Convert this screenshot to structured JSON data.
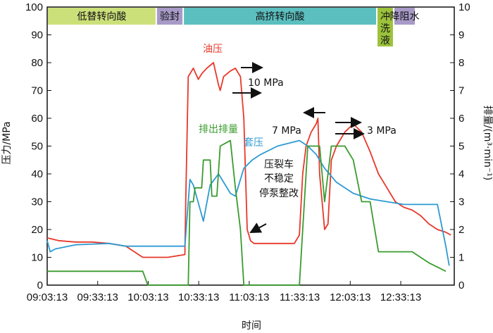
{
  "chart_data": {
    "type": "line",
    "xlabel": "时间",
    "ylabel": "压力/MPa",
    "y2label": "排量/(m³·min⁻¹)",
    "ylim": [
      0,
      100
    ],
    "y2lim": [
      0,
      10
    ],
    "x_ticks": [
      "09:03:13",
      "09:33:13",
      "10:03:13",
      "10:33:13",
      "11:03:13",
      "11:33:13",
      "12:03:13",
      "12:33:13"
    ],
    "y_ticks": [
      0,
      10,
      20,
      30,
      40,
      50,
      60,
      70,
      80,
      90,
      100
    ],
    "y2_ticks": [
      0,
      1,
      2,
      3,
      4,
      5,
      6,
      7,
      8,
      9,
      10
    ],
    "stages": [
      {
        "label": "低替转向酸",
        "from": "09:03:13",
        "to": "10:08:00",
        "color": "#cce07a"
      },
      {
        "label": "验封",
        "from": "10:08:00",
        "to": "10:24:00",
        "color": "#a89ac8"
      },
      {
        "label": "高挤转向酸",
        "from": "10:24:00",
        "to": "12:19:00",
        "color": "#5cbfbf"
      },
      {
        "label": "冲洗液",
        "from": "12:19:00",
        "to": "12:29:00",
        "color": "#9cc23c"
      },
      {
        "label": "降阻水",
        "from": "12:29:00",
        "to": "12:42:00",
        "color": "#a89ac8"
      }
    ],
    "series": [
      {
        "name": "油压",
        "axis": "left",
        "color": "#e8382a",
        "points": [
          [
            "09:03:13",
            17
          ],
          [
            "09:10:00",
            16
          ],
          [
            "09:20:00",
            15.5
          ],
          [
            "09:30:00",
            15.5
          ],
          [
            "09:40:00",
            15
          ],
          [
            "09:50:00",
            14
          ],
          [
            "10:00:00",
            10
          ],
          [
            "10:15:00",
            10
          ],
          [
            "10:25:00",
            11
          ],
          [
            "10:25:30",
            30
          ],
          [
            "10:27:00",
            75
          ],
          [
            "10:30:00",
            78
          ],
          [
            "10:33:00",
            74
          ],
          [
            "10:35:00",
            76
          ],
          [
            "10:38:00",
            78
          ],
          [
            "10:42:00",
            80
          ],
          [
            "10:45:00",
            72
          ],
          [
            "10:46:00",
            70
          ],
          [
            "10:48:00",
            75
          ],
          [
            "10:52:00",
            77
          ],
          [
            "10:55:00",
            78
          ],
          [
            "10:58:00",
            75
          ],
          [
            "11:00:00",
            60
          ],
          [
            "11:01:00",
            40
          ],
          [
            "11:02:00",
            20
          ],
          [
            "11:04:00",
            16
          ],
          [
            "11:06:00",
            15
          ],
          [
            "11:30:00",
            15
          ],
          [
            "11:33:00",
            18
          ],
          [
            "11:35:00",
            40
          ],
          [
            "11:37:00",
            50
          ],
          [
            "11:40:00",
            55
          ],
          [
            "11:43:00",
            58
          ],
          [
            "11:44:00",
            60
          ],
          [
            "11:45:00",
            40
          ],
          [
            "11:48:00",
            20
          ],
          [
            "11:50:00",
            22
          ],
          [
            "11:52:00",
            45
          ],
          [
            "11:55:00",
            50
          ],
          [
            "12:00:00",
            55
          ],
          [
            "12:05:00",
            58
          ],
          [
            "12:10:00",
            55
          ],
          [
            "12:15:00",
            48
          ],
          [
            "12:20:00",
            40
          ],
          [
            "12:25:00",
            35
          ],
          [
            "12:30:00",
            30
          ],
          [
            "12:35:00",
            28
          ],
          [
            "12:40:00",
            27
          ],
          [
            "12:45:00",
            25
          ],
          [
            "12:50:00",
            22
          ],
          [
            "12:55:00",
            20
          ],
          [
            "13:00:00",
            19
          ],
          [
            "13:03:00",
            18
          ]
        ]
      },
      {
        "name": "套压",
        "axis": "left",
        "color": "#2d9ad2",
        "points": [
          [
            "09:03:13",
            16
          ],
          [
            "09:05:00",
            12
          ],
          [
            "09:08:00",
            13
          ],
          [
            "09:20:00",
            14.5
          ],
          [
            "09:40:00",
            15
          ],
          [
            "09:50:00",
            14
          ],
          [
            "10:10:00",
            14
          ],
          [
            "10:25:00",
            14
          ],
          [
            "10:28:00",
            38
          ],
          [
            "10:30:00",
            36
          ],
          [
            "10:36:00",
            23
          ],
          [
            "10:40:00",
            36
          ],
          [
            "10:45:00",
            40
          ],
          [
            "10:52:00",
            33
          ],
          [
            "10:55:00",
            32
          ],
          [
            "11:00:00",
            42
          ],
          [
            "11:05:00",
            45
          ],
          [
            "11:10:00",
            47
          ],
          [
            "11:20:00",
            50
          ],
          [
            "11:33:00",
            52
          ],
          [
            "11:38:00",
            50
          ],
          [
            "11:43:00",
            47
          ],
          [
            "11:48:00",
            42
          ],
          [
            "11:55:00",
            37
          ],
          [
            "12:05:00",
            33
          ],
          [
            "12:15:00",
            31
          ],
          [
            "12:25:00",
            30
          ],
          [
            "12:35:00",
            29
          ],
          [
            "12:45:00",
            29
          ],
          [
            "12:55:00",
            29
          ],
          [
            "13:00:00",
            14
          ],
          [
            "13:02:00",
            7
          ]
        ]
      },
      {
        "name": "排出排量",
        "axis": "right",
        "color": "#3a9b2e",
        "points": [
          [
            "09:03:13",
            0.5
          ],
          [
            "09:33:00",
            0.5
          ],
          [
            "09:33:00",
            0.5
          ],
          [
            "10:00:00",
            0.5
          ],
          [
            "10:03:00",
            0
          ],
          [
            "10:27:00",
            0
          ],
          [
            "10:28:00",
            3
          ],
          [
            "10:30:00",
            3
          ],
          [
            "10:31:00",
            3.5
          ],
          [
            "10:35:00",
            3.5
          ],
          [
            "10:36:00",
            4.5
          ],
          [
            "10:40:00",
            4.5
          ],
          [
            "10:41:00",
            3.2
          ],
          [
            "10:44:00",
            3.2
          ],
          [
            "10:46:00",
            5
          ],
          [
            "10:52:00",
            5.2
          ],
          [
            "10:55:00",
            3.5
          ],
          [
            "10:58:00",
            2
          ],
          [
            "11:00:00",
            0
          ],
          [
            "11:33:00",
            0
          ],
          [
            "11:36:00",
            3
          ],
          [
            "11:38:00",
            5
          ],
          [
            "11:45:00",
            5
          ],
          [
            "11:48:00",
            3
          ],
          [
            "11:52:00",
            5
          ],
          [
            "12:00:00",
            5
          ],
          [
            "12:05:00",
            4.5
          ],
          [
            "12:10:00",
            3
          ],
          [
            "12:15:00",
            3
          ],
          [
            "12:20:00",
            1.2
          ],
          [
            "12:30:00",
            1.2
          ],
          [
            "12:40:00",
            1.2
          ],
          [
            "12:50:00",
            0.8
          ],
          [
            "13:00:00",
            0.5
          ]
        ]
      }
    ],
    "annotations": [
      {
        "text": "油压",
        "color": "#e8382a"
      },
      {
        "text": "10 MPa",
        "color": "#111111"
      },
      {
        "text": "排出排量",
        "color": "#3a9b2e"
      },
      {
        "text": "7 MPa",
        "color": "#111111"
      },
      {
        "text": "3 MPa",
        "color": "#111111"
      },
      {
        "text": "套压",
        "color": "#2d9ad2"
      },
      {
        "text": "压裂车",
        "color": "#111111"
      },
      {
        "text": "不稳定",
        "color": "#111111"
      },
      {
        "text": "停泵整改",
        "color": "#111111"
      }
    ]
  }
}
